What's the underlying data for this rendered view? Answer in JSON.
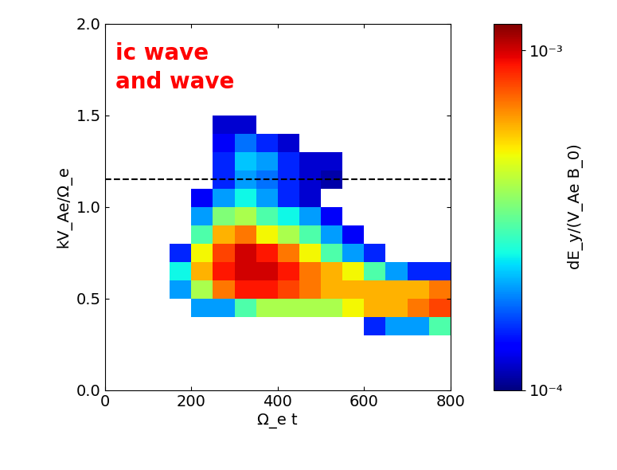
{
  "chart_data": {
    "type": "heatmap",
    "x_label": "Ω_e t",
    "y_label": "kV_Ae/Ω_e",
    "colorbar_label": "dE_y/(V_Ae B_0)",
    "annotations": [
      {
        "text": "ic wave",
        "color": "red"
      },
      {
        "text": "and wave",
        "color": "red"
      }
    ],
    "xlim": [
      0,
      800
    ],
    "ylim": [
      0.0,
      2.0
    ],
    "xticks": [
      0,
      200,
      400,
      600,
      800
    ],
    "yticks": [
      0.0,
      0.5,
      1.0,
      1.5,
      2.0
    ],
    "x_edges": [
      0,
      50,
      100,
      150,
      200,
      250,
      300,
      350,
      400,
      450,
      500,
      550,
      600,
      650,
      700,
      750,
      800
    ],
    "y_edges": [
      0.0,
      0.1,
      0.2,
      0.3,
      0.4,
      0.5,
      0.6,
      0.7,
      0.8,
      0.9,
      1.0,
      1.1,
      1.2,
      1.3,
      1.4,
      1.5,
      1.6,
      1.7,
      1.8,
      1.9,
      2.0
    ],
    "cells": [
      [
        null,
        null,
        null,
        null,
        null,
        null,
        null,
        null,
        null,
        null,
        null,
        null,
        null,
        null,
        null,
        null
      ],
      [
        null,
        null,
        null,
        null,
        null,
        null,
        null,
        null,
        null,
        null,
        null,
        null,
        null,
        null,
        null,
        null
      ],
      [
        null,
        null,
        null,
        null,
        null,
        null,
        null,
        null,
        null,
        null,
        null,
        null,
        null,
        null,
        null,
        null
      ],
      [
        null,
        null,
        null,
        null,
        null,
        null,
        null,
        null,
        null,
        null,
        null,
        null,
        0.00015,
        0.0002,
        0.0002,
        0.0003
      ],
      [
        null,
        null,
        null,
        null,
        0.0002,
        0.0002,
        0.0003,
        0.0004,
        0.0004,
        0.0004,
        0.0004,
        0.0005,
        0.0006,
        0.0006,
        0.0007,
        0.0008
      ],
      [
        null,
        null,
        null,
        0.0002,
        0.0004,
        0.0007,
        0.0009,
        0.0009,
        0.0008,
        0.0007,
        0.0006,
        0.0006,
        0.0006,
        0.0006,
        0.0006,
        0.0007
      ],
      [
        null,
        null,
        null,
        0.00025,
        0.0006,
        0.0009,
        0.001,
        0.001,
        0.0009,
        0.0007,
        0.0006,
        0.0005,
        0.0003,
        0.0002,
        0.00015,
        0.00015
      ],
      [
        null,
        null,
        null,
        0.00015,
        0.0005,
        0.0008,
        0.001,
        0.0009,
        0.0007,
        0.0005,
        0.0003,
        0.0002,
        0.00015,
        null,
        null,
        null
      ],
      [
        null,
        null,
        null,
        null,
        0.0003,
        0.0006,
        0.0007,
        0.0005,
        0.0004,
        0.0003,
        0.0002,
        0.00013,
        null,
        null,
        null,
        null
      ],
      [
        null,
        null,
        null,
        null,
        0.0002,
        0.00035,
        0.0004,
        0.0003,
        0.00025,
        0.0002,
        0.00013,
        null,
        null,
        null,
        null,
        null
      ],
      [
        null,
        null,
        null,
        null,
        0.00013,
        0.0002,
        0.00025,
        0.0002,
        0.00015,
        0.00012,
        null,
        null,
        null,
        null,
        null,
        null
      ],
      [
        null,
        null,
        null,
        null,
        null,
        0.00015,
        0.0002,
        0.00018,
        0.00015,
        0.00012,
        0.00011,
        null,
        null,
        null,
        null,
        null
      ],
      [
        null,
        null,
        null,
        null,
        null,
        0.00015,
        0.00022,
        0.0002,
        0.00015,
        0.00012,
        0.00012,
        null,
        null,
        null,
        null,
        null
      ],
      [
        null,
        null,
        null,
        null,
        null,
        0.00013,
        0.00018,
        0.00015,
        0.00012,
        null,
        null,
        null,
        null,
        null,
        null,
        null
      ],
      [
        null,
        null,
        null,
        null,
        null,
        0.00012,
        0.00012,
        null,
        null,
        null,
        null,
        null,
        null,
        null,
        null,
        null
      ],
      [
        null,
        null,
        null,
        null,
        null,
        null,
        null,
        null,
        null,
        null,
        null,
        null,
        null,
        null,
        null,
        null
      ],
      [
        null,
        null,
        null,
        null,
        null,
        null,
        null,
        null,
        null,
        null,
        null,
        null,
        null,
        null,
        null,
        null
      ],
      [
        null,
        null,
        null,
        null,
        null,
        null,
        null,
        null,
        null,
        null,
        null,
        null,
        null,
        null,
        null,
        null
      ],
      [
        null,
        null,
        null,
        null,
        null,
        null,
        null,
        null,
        null,
        null,
        null,
        null,
        null,
        null,
        null,
        null
      ],
      [
        null,
        null,
        null,
        null,
        null,
        null,
        null,
        null,
        null,
        null,
        null,
        null,
        null,
        null,
        null,
        null
      ]
    ],
    "colorbar_range": [
      0.0001,
      0.0012
    ],
    "colorbar_ticks": [
      {
        "value": 0.0001,
        "label": "10⁻⁴"
      },
      {
        "value": 0.001,
        "label": "10⁻³"
      }
    ],
    "reference_line": {
      "y": 1.15,
      "line_style": "dashed",
      "color": "black"
    }
  }
}
